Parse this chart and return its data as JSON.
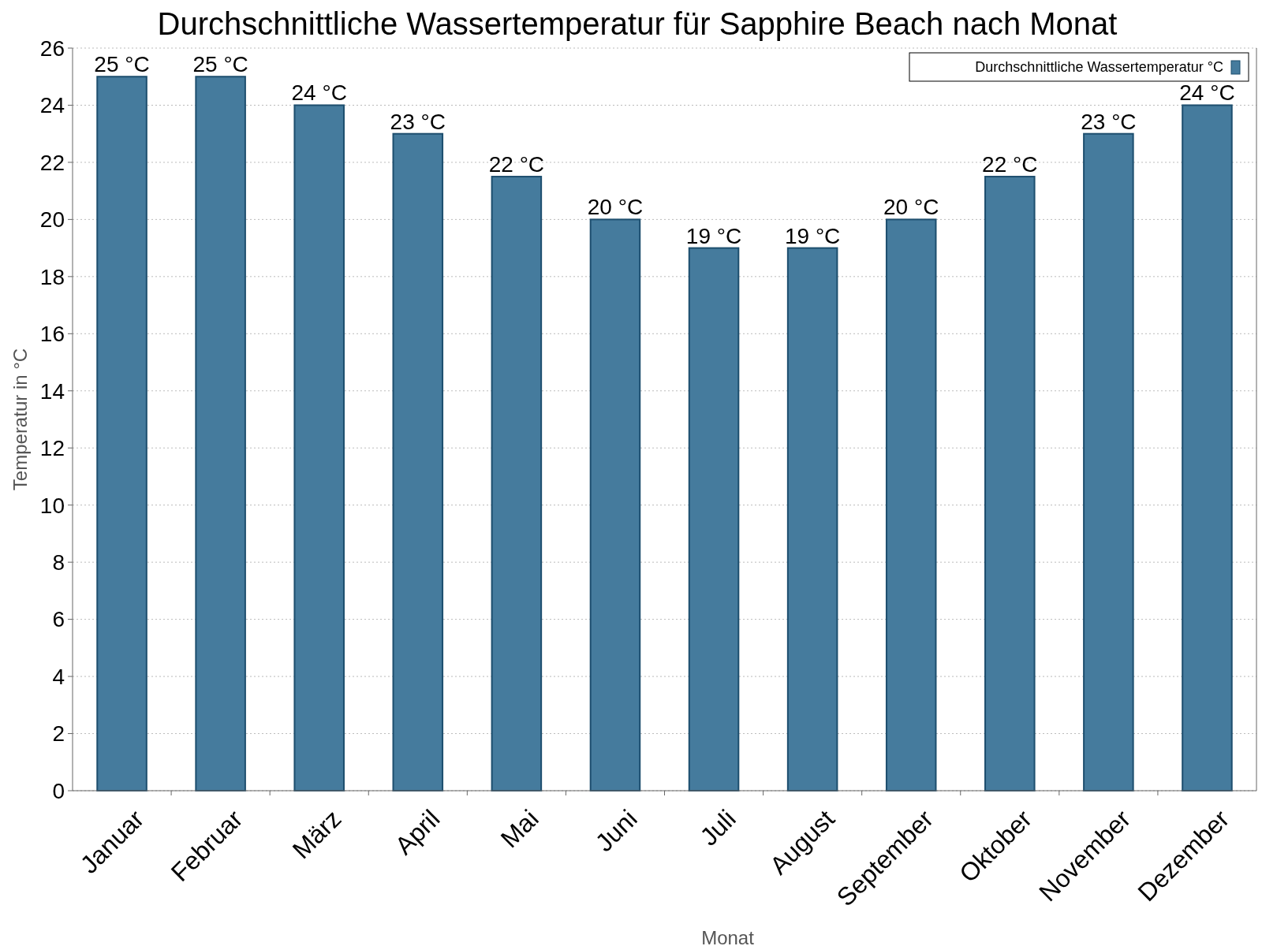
{
  "chart_data": {
    "type": "bar",
    "title": "Durchschnittliche Wassertemperatur für Sapphire Beach nach Monat",
    "xlabel": "Monat",
    "ylabel": "Temperatur in °C",
    "categories": [
      "Januar",
      "Februar",
      "März",
      "April",
      "Mai",
      "Juni",
      "Juli",
      "August",
      "September",
      "Oktober",
      "November",
      "Dezember"
    ],
    "series": [
      {
        "name": "Durchschnittliche Wassertemperatur °C",
        "color": "#457b9d",
        "values": [
          25,
          25,
          24,
          23,
          21.5,
          20,
          19,
          19,
          20,
          21.5,
          23,
          24
        ],
        "value_labels": [
          "25 °C",
          "25 °C",
          "24 °C",
          "23 °C",
          "22 °C",
          "20 °C",
          "19 °C",
          "19 °C",
          "20 °C",
          "22 °C",
          "23 °C",
          "24 °C"
        ]
      }
    ],
    "ylim": [
      0,
      26
    ],
    "yticks": [
      0,
      2,
      4,
      6,
      8,
      10,
      12,
      14,
      16,
      18,
      20,
      22,
      24,
      26
    ],
    "grid": "y",
    "legend": "top right"
  }
}
